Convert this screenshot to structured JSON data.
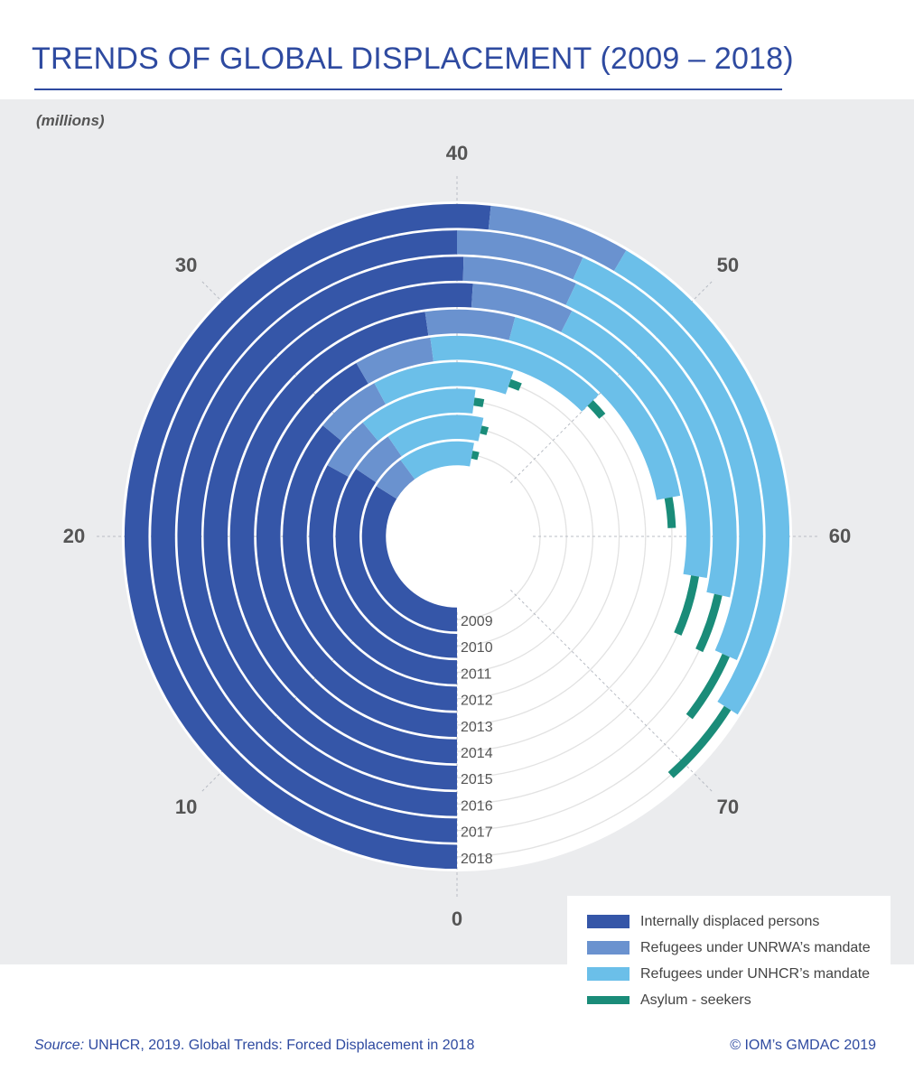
{
  "header": {
    "title": "TRENDS OF GLOBAL DISPLACEMENT (2009 – 2018)",
    "units": "(millions)"
  },
  "colors": {
    "idp": "#3556a8",
    "unrwa": "#6a92cf",
    "unhcr": "#6bbfe9",
    "asylum": "#1a8c79",
    "panel": "#ebecee",
    "title": "#2e4aa0"
  },
  "legend": {
    "items": [
      {
        "label": "Internally displaced persons",
        "color": "#3556a8"
      },
      {
        "label": "Refugees under UNRWA’s mandate",
        "color": "#6a92cf"
      },
      {
        "label": "Refugees under UNHCR’s mandate",
        "color": "#6bbfe9"
      },
      {
        "label": "Asylum - seekers",
        "color": "#1a8c79"
      }
    ]
  },
  "footer": {
    "source_label": "Source:",
    "source_text": " UNHCR, 2019. Global Trends: Forced Displacement in 2018",
    "copyright": "© IOM’s GMDAC 2019"
  },
  "chart_data": {
    "type": "radial-stacked-bar",
    "units": "millions",
    "scale_max": 80,
    "tick_labels": [
      "0",
      "10",
      "20",
      "30",
      "40",
      "50",
      "60",
      "70"
    ],
    "categories": [
      "2009",
      "2010",
      "2011",
      "2012",
      "2013",
      "2014",
      "2015",
      "2016",
      "2017",
      "2018"
    ],
    "series": [
      {
        "name": "Internally displaced persons",
        "values": [
          27.1,
          27.5,
          26.4,
          28.8,
          33.3,
          38.2,
          40.8,
          40.3,
          40.0,
          41.3
        ]
      },
      {
        "name": "Refugees under UNRWA’s mandate",
        "values": [
          4.8,
          4.8,
          4.8,
          4.9,
          5.0,
          5.1,
          5.2,
          5.3,
          5.4,
          5.5
        ]
      },
      {
        "name": "Refugees under UNHCR’s mandate",
        "values": [
          10.4,
          10.5,
          10.4,
          10.5,
          11.7,
          14.4,
          16.1,
          17.2,
          19.9,
          20.4
        ]
      },
      {
        "name": "Asylum - seekers",
        "values": [
          1.0,
          0.8,
          0.9,
          0.9,
          1.2,
          1.8,
          3.2,
          2.8,
          3.1,
          3.5
        ]
      }
    ]
  }
}
